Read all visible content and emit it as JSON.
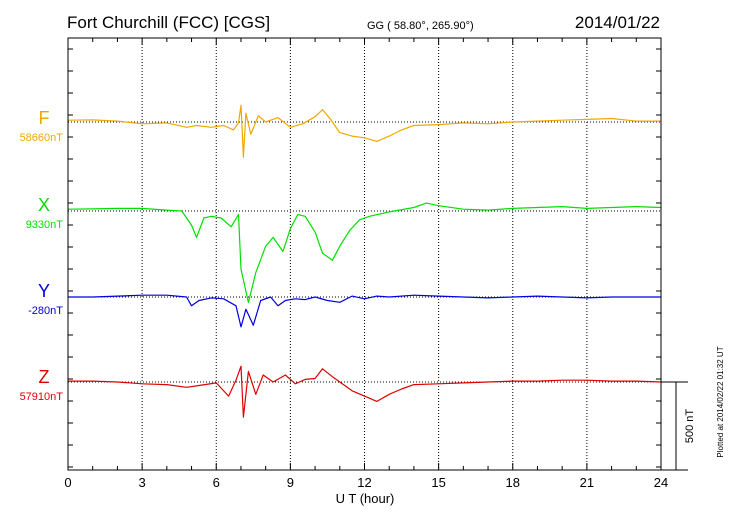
{
  "header": {
    "station": "Fort Churchill (FCC)  [CGS]",
    "coords": "GG ( 58.80°, 265.90°)",
    "date": "2014/01/22"
  },
  "footer_note": "Plotted at 2014/02/22 01:32 UT",
  "scale_label": "500 nT",
  "colors": {
    "F": "#f0a800",
    "X": "#00e000",
    "Y": "#0000dd",
    "Z": "#e00000"
  },
  "chart_data": {
    "type": "line",
    "xlabel": "U T (hour)",
    "xlim": [
      0,
      24
    ],
    "xticks": [
      0,
      3,
      6,
      9,
      12,
      15,
      18,
      21,
      24
    ],
    "scale_bar_nT": 500,
    "series": [
      {
        "name": "F",
        "baseline_label": "58660nT",
        "points": [
          [
            0,
            10
          ],
          [
            1,
            12
          ],
          [
            2,
            5
          ],
          [
            3,
            -10
          ],
          [
            4,
            -5
          ],
          [
            4.8,
            -30
          ],
          [
            5.2,
            -20
          ],
          [
            5.8,
            -30
          ],
          [
            6.3,
            -20
          ],
          [
            6.7,
            -45
          ],
          [
            6.9,
            -5
          ],
          [
            7,
            95
          ],
          [
            7.1,
            -200
          ],
          [
            7.2,
            50
          ],
          [
            7.4,
            -70
          ],
          [
            7.7,
            35
          ],
          [
            8,
            0
          ],
          [
            8.5,
            25
          ],
          [
            9,
            -30
          ],
          [
            9.5,
            -10
          ],
          [
            10,
            30
          ],
          [
            10.3,
            70
          ],
          [
            10.6,
            20
          ],
          [
            11,
            -60
          ],
          [
            11.5,
            -80
          ],
          [
            12,
            -90
          ],
          [
            12.5,
            -110
          ],
          [
            13,
            -80
          ],
          [
            13.5,
            -45
          ],
          [
            14,
            -20
          ],
          [
            15,
            -15
          ],
          [
            16,
            -5
          ],
          [
            17,
            -10
          ],
          [
            18,
            0
          ],
          [
            19,
            5
          ],
          [
            20,
            10
          ],
          [
            21,
            15
          ],
          [
            22,
            20
          ],
          [
            23,
            5
          ],
          [
            24,
            5
          ]
        ]
      },
      {
        "name": "X",
        "baseline_label": "9330nT",
        "points": [
          [
            0,
            10
          ],
          [
            1,
            12
          ],
          [
            2,
            15
          ],
          [
            3,
            15
          ],
          [
            4,
            5
          ],
          [
            4.6,
            0
          ],
          [
            5,
            -80
          ],
          [
            5.2,
            -150
          ],
          [
            5.5,
            -40
          ],
          [
            5.8,
            -30
          ],
          [
            6.2,
            -40
          ],
          [
            6.6,
            -90
          ],
          [
            6.9,
            -20
          ],
          [
            7,
            -330
          ],
          [
            7.3,
            -520
          ],
          [
            7.6,
            -350
          ],
          [
            8,
            -200
          ],
          [
            8.3,
            -150
          ],
          [
            8.7,
            -230
          ],
          [
            9,
            -100
          ],
          [
            9.3,
            -20
          ],
          [
            9.6,
            -30
          ],
          [
            10,
            -120
          ],
          [
            10.3,
            -240
          ],
          [
            10.7,
            -280
          ],
          [
            11,
            -200
          ],
          [
            11.4,
            -110
          ],
          [
            11.8,
            -50
          ],
          [
            12.2,
            -30
          ],
          [
            13,
            -5
          ],
          [
            14,
            20
          ],
          [
            14.5,
            45
          ],
          [
            15,
            30
          ],
          [
            16,
            10
          ],
          [
            17,
            5
          ],
          [
            18,
            15
          ],
          [
            19,
            20
          ],
          [
            20,
            25
          ],
          [
            21,
            15
          ],
          [
            22,
            20
          ],
          [
            23,
            25
          ],
          [
            24,
            20
          ]
        ]
      },
      {
        "name": "Y",
        "baseline_label": "-280nT",
        "points": [
          [
            0,
            0
          ],
          [
            1,
            0
          ],
          [
            2,
            5
          ],
          [
            3,
            10
          ],
          [
            4,
            10
          ],
          [
            4.8,
            0
          ],
          [
            5,
            -50
          ],
          [
            5.3,
            -20
          ],
          [
            5.8,
            -5
          ],
          [
            6.3,
            -10
          ],
          [
            6.8,
            -50
          ],
          [
            7,
            -170
          ],
          [
            7.2,
            -70
          ],
          [
            7.5,
            -160
          ],
          [
            7.8,
            -20
          ],
          [
            8.2,
            0
          ],
          [
            8.5,
            -50
          ],
          [
            8.8,
            -20
          ],
          [
            9.2,
            -10
          ],
          [
            9.6,
            -15
          ],
          [
            10,
            0
          ],
          [
            10.5,
            -20
          ],
          [
            11,
            -30
          ],
          [
            11.5,
            5
          ],
          [
            12,
            -10
          ],
          [
            12.5,
            5
          ],
          [
            13,
            0
          ],
          [
            14,
            10
          ],
          [
            15,
            5
          ],
          [
            16,
            0
          ],
          [
            17,
            -5
          ],
          [
            18,
            0
          ],
          [
            19,
            5
          ],
          [
            20,
            0
          ],
          [
            21,
            -5
          ],
          [
            22,
            0
          ],
          [
            23,
            0
          ],
          [
            24,
            0
          ]
        ]
      },
      {
        "name": "Z",
        "baseline_label": "57910nT",
        "points": [
          [
            0,
            5
          ],
          [
            1,
            5
          ],
          [
            2,
            0
          ],
          [
            3,
            -10
          ],
          [
            4,
            -15
          ],
          [
            4.8,
            -30
          ],
          [
            5.3,
            -20
          ],
          [
            6,
            -5
          ],
          [
            6.5,
            -80
          ],
          [
            6.8,
            10
          ],
          [
            7,
            90
          ],
          [
            7.1,
            -200
          ],
          [
            7.3,
            60
          ],
          [
            7.6,
            -70
          ],
          [
            7.9,
            40
          ],
          [
            8.3,
            0
          ],
          [
            8.8,
            40
          ],
          [
            9.2,
            -10
          ],
          [
            9.6,
            15
          ],
          [
            10,
            20
          ],
          [
            10.3,
            75
          ],
          [
            10.7,
            30
          ],
          [
            11,
            0
          ],
          [
            11.5,
            -50
          ],
          [
            12,
            -80
          ],
          [
            12.5,
            -110
          ],
          [
            13,
            -70
          ],
          [
            13.5,
            -40
          ],
          [
            14,
            -15
          ],
          [
            15,
            -10
          ],
          [
            16,
            -5
          ],
          [
            17,
            0
          ],
          [
            18,
            5
          ],
          [
            19,
            5
          ],
          [
            20,
            10
          ],
          [
            21,
            10
          ],
          [
            22,
            5
          ],
          [
            23,
            5
          ],
          [
            24,
            0
          ]
        ]
      }
    ]
  }
}
